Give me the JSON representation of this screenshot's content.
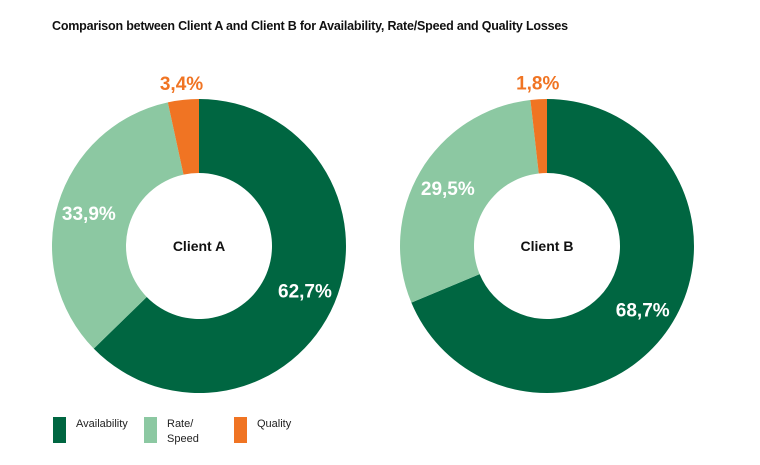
{
  "chart_data": {
    "type": "pie",
    "variant": "donut",
    "title": "Comparison between Client A and Client B for Availability, Rate/Speed and Quality Losses",
    "categories": [
      "Availability",
      "Rate/Speed",
      "Quality"
    ],
    "colors": [
      "#006641",
      "#8cc8a2",
      "#f07423"
    ],
    "legend": {
      "placement": "bottom-left",
      "labels": [
        "Availability",
        "Rate/\nSpeed",
        "Quality"
      ]
    },
    "charts": [
      {
        "center_label": "Client A",
        "values": [
          62.7,
          33.9,
          3.4
        ],
        "labels": [
          "62,7%",
          "33,9%",
          "3,4%"
        ]
      },
      {
        "center_label": "Client B",
        "values": [
          68.7,
          29.5,
          1.8
        ],
        "labels": [
          "68,7%",
          "29,5%",
          "1,8%"
        ]
      }
    ]
  }
}
